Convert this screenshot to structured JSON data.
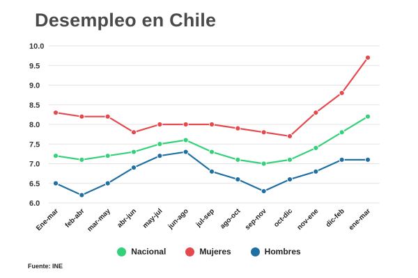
{
  "title": "Desempleo en Chile",
  "source": "Fuente: INE",
  "chart_data": {
    "type": "line",
    "title": "Desempleo en Chile",
    "xlabel": "",
    "ylabel": "",
    "ylim": [
      6.0,
      10.0
    ],
    "yticks": [
      "6.0",
      "6.5",
      "7.0",
      "7.5",
      "8.0",
      "8.5",
      "9.0",
      "9.5",
      "10.0"
    ],
    "grid": true,
    "legend_position": "bottom-center",
    "categories": [
      "Ene-mar",
      "feb-abr",
      "mar-may",
      "abr-jun",
      "may-jul",
      "jun-ago",
      "jul-sep",
      "ago-oct",
      "sep-nov",
      "oct-dic",
      "nov-ene",
      "dic-feb",
      "ene-mar"
    ],
    "series": [
      {
        "name": "Nacional",
        "color": "#33d17a",
        "values": [
          7.2,
          7.1,
          7.2,
          7.3,
          7.5,
          7.6,
          7.3,
          7.1,
          7.0,
          7.1,
          7.4,
          7.8,
          8.2
        ]
      },
      {
        "name": "Mujeres",
        "color": "#e5484d",
        "values": [
          8.3,
          8.2,
          8.2,
          7.8,
          8.0,
          8.0,
          8.0,
          7.9,
          7.8,
          7.7,
          8.3,
          8.8,
          9.7
        ]
      },
      {
        "name": "Hombres",
        "color": "#1f6fa3",
        "values": [
          6.5,
          6.2,
          6.5,
          6.9,
          7.2,
          7.3,
          6.8,
          6.6,
          6.3,
          6.6,
          6.8,
          7.1,
          7.1
        ]
      }
    ]
  }
}
